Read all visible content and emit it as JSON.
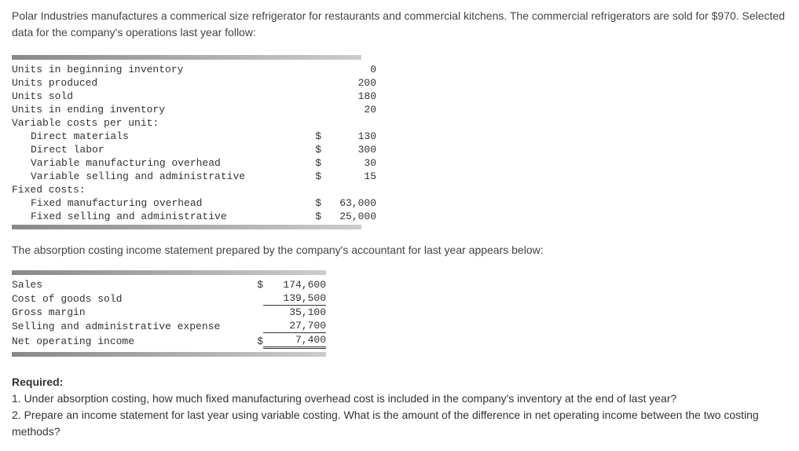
{
  "intro": "Polar Industries manufactures a commerical size refrigerator for restaurants and commercial kitchens. The commercial refrigerators are sold for $970. Selected data for the company's operations last year follow:",
  "t1": {
    "rows": [
      {
        "label": "Units in beginning inventory",
        "sym": "",
        "val": "0",
        "indent": false
      },
      {
        "label": "Units produced",
        "sym": "",
        "val": "200",
        "indent": false
      },
      {
        "label": "Units sold",
        "sym": "",
        "val": "180",
        "indent": false
      },
      {
        "label": "Units in ending inventory",
        "sym": "",
        "val": "20",
        "indent": false
      },
      {
        "label": "Variable costs per unit:",
        "sym": "",
        "val": "",
        "indent": false
      },
      {
        "label": "Direct materials",
        "sym": "$",
        "val": "130",
        "indent": true
      },
      {
        "label": "Direct labor",
        "sym": "$",
        "val": "300",
        "indent": true
      },
      {
        "label": "Variable manufacturing overhead",
        "sym": "$",
        "val": "30",
        "indent": true
      },
      {
        "label": "Variable selling and administrative",
        "sym": "$",
        "val": "15",
        "indent": true
      },
      {
        "label": "Fixed costs:",
        "sym": "",
        "val": "",
        "indent": false
      },
      {
        "label": "Fixed manufacturing overhead",
        "sym": "$",
        "val": "63,000",
        "indent": true
      },
      {
        "label": "Fixed selling and administrative",
        "sym": "$",
        "val": "25,000",
        "indent": true
      }
    ]
  },
  "midtext": "The absorption costing income statement prepared by the company's accountant for last year appears below:",
  "t2": {
    "rows": [
      {
        "label": "Sales",
        "sym": "$",
        "val": "174,600",
        "ul": false,
        "dbl": false
      },
      {
        "label": "Cost of goods sold",
        "sym": "",
        "val": "139,500",
        "ul": true,
        "dbl": false
      },
      {
        "label": "Gross margin",
        "sym": "",
        "val": "35,100",
        "ul": false,
        "dbl": false
      },
      {
        "label": "Selling and administrative expense",
        "sym": "",
        "val": "27,700",
        "ul": true,
        "dbl": false
      },
      {
        "label": "Net operating income",
        "sym": "$",
        "val": "7,400",
        "ul": false,
        "dbl": true
      }
    ]
  },
  "required": {
    "heading": "Required:",
    "q1": "1. Under absorption costing, how much fixed manufacturing overhead cost is included in the company's inventory at the end of last year?",
    "q2": "2. Prepare an income statement for last year using variable costing. What is the amount of the difference in net operating income between the two costing methods?"
  }
}
